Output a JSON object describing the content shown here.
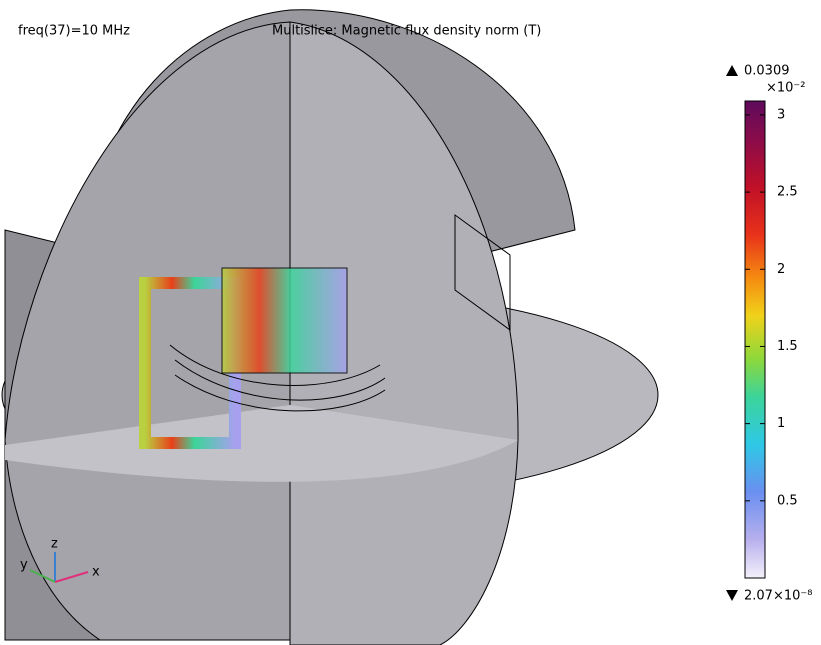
{
  "header": {
    "left": "freq(37)=10 MHz",
    "title": "Multislice: Magnetic flux density norm (T)"
  },
  "colorbar": {
    "max_label": "0.0309",
    "multiplier": "×10⁻²",
    "min_label": "2.07×10⁻⁸",
    "lim": [
      0,
      3.09
    ],
    "ticks": [
      0.5,
      1,
      1.5,
      2,
      2.5,
      3
    ]
  },
  "axes": {
    "x": "x",
    "y": "y",
    "z": "z"
  }
}
